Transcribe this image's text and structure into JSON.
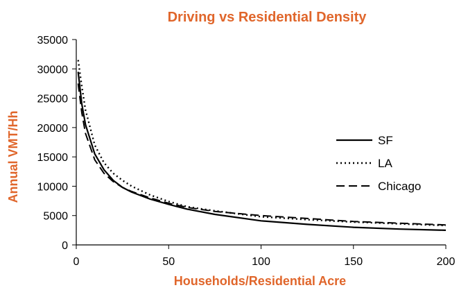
{
  "chart_data": {
    "type": "line",
    "title": "Driving vs Residential Density",
    "xlabel": "Households/Residential Acre",
    "ylabel": "Annual VMT/Hh",
    "xlim": [
      0,
      200
    ],
    "ylim": [
      0,
      35000
    ],
    "x_ticks": [
      0,
      50,
      100,
      150,
      200
    ],
    "y_ticks": [
      0,
      5000,
      10000,
      15000,
      20000,
      25000,
      30000,
      35000
    ],
    "grid": false,
    "legend_position": "right",
    "accent_color": "#e0662b",
    "series": [
      {
        "name": "SF",
        "style": "solid",
        "x": [
          1,
          3,
          5,
          10,
          15,
          20,
          25,
          30,
          40,
          50,
          60,
          75,
          100,
          125,
          150,
          175,
          200
        ],
        "y": [
          29500,
          24000,
          20500,
          15500,
          12800,
          11000,
          9800,
          9000,
          7800,
          6900,
          6100,
          5200,
          4100,
          3500,
          3000,
          2700,
          2500
        ]
      },
      {
        "name": "LA",
        "style": "dotted",
        "x": [
          1,
          3,
          5,
          10,
          15,
          20,
          25,
          30,
          40,
          50,
          60,
          75,
          100,
          125,
          150,
          175,
          200
        ],
        "y": [
          31500,
          27000,
          23000,
          17000,
          14000,
          12200,
          11000,
          10000,
          8500,
          7400,
          6500,
          5800,
          4800,
          4300,
          3900,
          3600,
          3300
        ]
      },
      {
        "name": "Chicago",
        "style": "dashed",
        "x": [
          1,
          3,
          5,
          10,
          15,
          20,
          25,
          30,
          40,
          50,
          60,
          75,
          100,
          125,
          150,
          175,
          200
        ],
        "y": [
          27500,
          22500,
          19000,
          14500,
          12200,
          10800,
          9800,
          9100,
          8000,
          7100,
          6400,
          5700,
          5000,
          4500,
          4000,
          3700,
          3400
        ]
      }
    ]
  }
}
